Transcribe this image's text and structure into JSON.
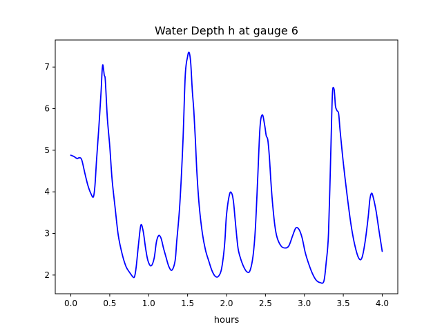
{
  "chart_data": {
    "type": "line",
    "title": "Water Depth h at gauge 6",
    "xlabel": "hours",
    "ylabel": "",
    "xlim": [
      -0.2,
      4.2
    ],
    "ylim": [
      1.55,
      7.65
    ],
    "xticks": [
      0.0,
      0.5,
      1.0,
      1.5,
      2.0,
      2.5,
      3.0,
      3.5,
      4.0
    ],
    "xtick_labels": [
      "0.0",
      "0.5",
      "1.0",
      "1.5",
      "2.0",
      "2.5",
      "3.0",
      "3.5",
      "4.0"
    ],
    "yticks": [
      2,
      3,
      4,
      5,
      6,
      7
    ],
    "ytick_labels": [
      "2",
      "3",
      "4",
      "5",
      "6",
      "7"
    ],
    "grid": false,
    "color": "#0000ff",
    "series": [
      {
        "x": [
          0.0,
          0.04,
          0.08,
          0.11,
          0.14,
          0.18,
          0.22,
          0.26,
          0.29,
          0.31,
          0.33,
          0.36,
          0.39,
          0.4,
          0.41,
          0.42,
          0.43,
          0.44,
          0.45,
          0.47,
          0.5,
          0.53,
          0.57,
          0.61,
          0.66,
          0.71,
          0.76,
          0.8,
          0.82,
          0.84,
          0.87,
          0.9,
          0.93,
          0.96,
          0.99,
          1.03,
          1.07,
          1.1,
          1.13,
          1.16,
          1.19,
          1.22,
          1.26,
          1.3,
          1.34,
          1.36,
          1.4,
          1.44,
          1.47,
          1.5,
          1.52,
          1.54,
          1.56,
          1.58,
          1.6,
          1.62,
          1.65,
          1.69,
          1.73,
          1.77,
          1.81,
          1.85,
          1.89,
          1.93,
          1.96,
          1.98,
          2.0,
          2.04,
          2.07,
          2.09,
          2.11,
          2.13,
          2.15,
          2.18,
          2.22,
          2.26,
          2.3,
          2.34,
          2.37,
          2.4,
          2.43,
          2.46,
          2.49,
          2.51,
          2.53,
          2.55,
          2.57,
          2.59,
          2.62,
          2.65,
          2.7,
          2.75,
          2.8,
          2.85,
          2.89,
          2.93,
          2.97,
          3.01,
          3.05,
          3.1,
          3.15,
          3.2,
          3.25,
          3.28,
          3.31,
          3.34,
          3.36,
          3.38,
          3.39,
          3.4,
          3.42,
          3.44,
          3.46,
          3.5,
          3.55,
          3.6,
          3.65,
          3.7,
          3.74,
          3.78,
          3.82,
          3.84,
          3.86,
          3.88,
          3.92,
          3.96,
          4.0
        ],
        "y": [
          4.88,
          4.85,
          4.8,
          4.82,
          4.77,
          4.45,
          4.15,
          3.95,
          3.88,
          4.15,
          4.75,
          5.55,
          6.45,
          6.85,
          7.05,
          6.95,
          6.8,
          6.75,
          6.45,
          5.75,
          5.1,
          4.3,
          3.6,
          2.95,
          2.5,
          2.2,
          2.05,
          1.95,
          1.97,
          2.2,
          2.75,
          3.2,
          3.05,
          2.65,
          2.35,
          2.22,
          2.4,
          2.8,
          2.95,
          2.88,
          2.65,
          2.45,
          2.2,
          2.12,
          2.35,
          2.8,
          3.7,
          5.2,
          6.8,
          7.25,
          7.35,
          7.1,
          6.45,
          5.95,
          5.25,
          4.45,
          3.65,
          3.0,
          2.6,
          2.35,
          2.12,
          1.98,
          1.96,
          2.1,
          2.45,
          2.85,
          3.45,
          3.95,
          3.95,
          3.75,
          3.35,
          2.95,
          2.62,
          2.4,
          2.2,
          2.08,
          2.1,
          2.45,
          3.1,
          4.3,
          5.55,
          5.85,
          5.6,
          5.35,
          5.25,
          4.85,
          4.25,
          3.75,
          3.2,
          2.9,
          2.7,
          2.65,
          2.7,
          2.95,
          3.13,
          3.1,
          2.9,
          2.55,
          2.3,
          2.05,
          1.88,
          1.82,
          1.85,
          2.3,
          3.0,
          5.0,
          6.35,
          6.48,
          6.3,
          6.05,
          5.95,
          5.88,
          5.45,
          4.7,
          3.9,
          3.2,
          2.7,
          2.4,
          2.42,
          2.8,
          3.4,
          3.8,
          3.96,
          3.9,
          3.55,
          3.05,
          2.57
        ]
      }
    ]
  }
}
